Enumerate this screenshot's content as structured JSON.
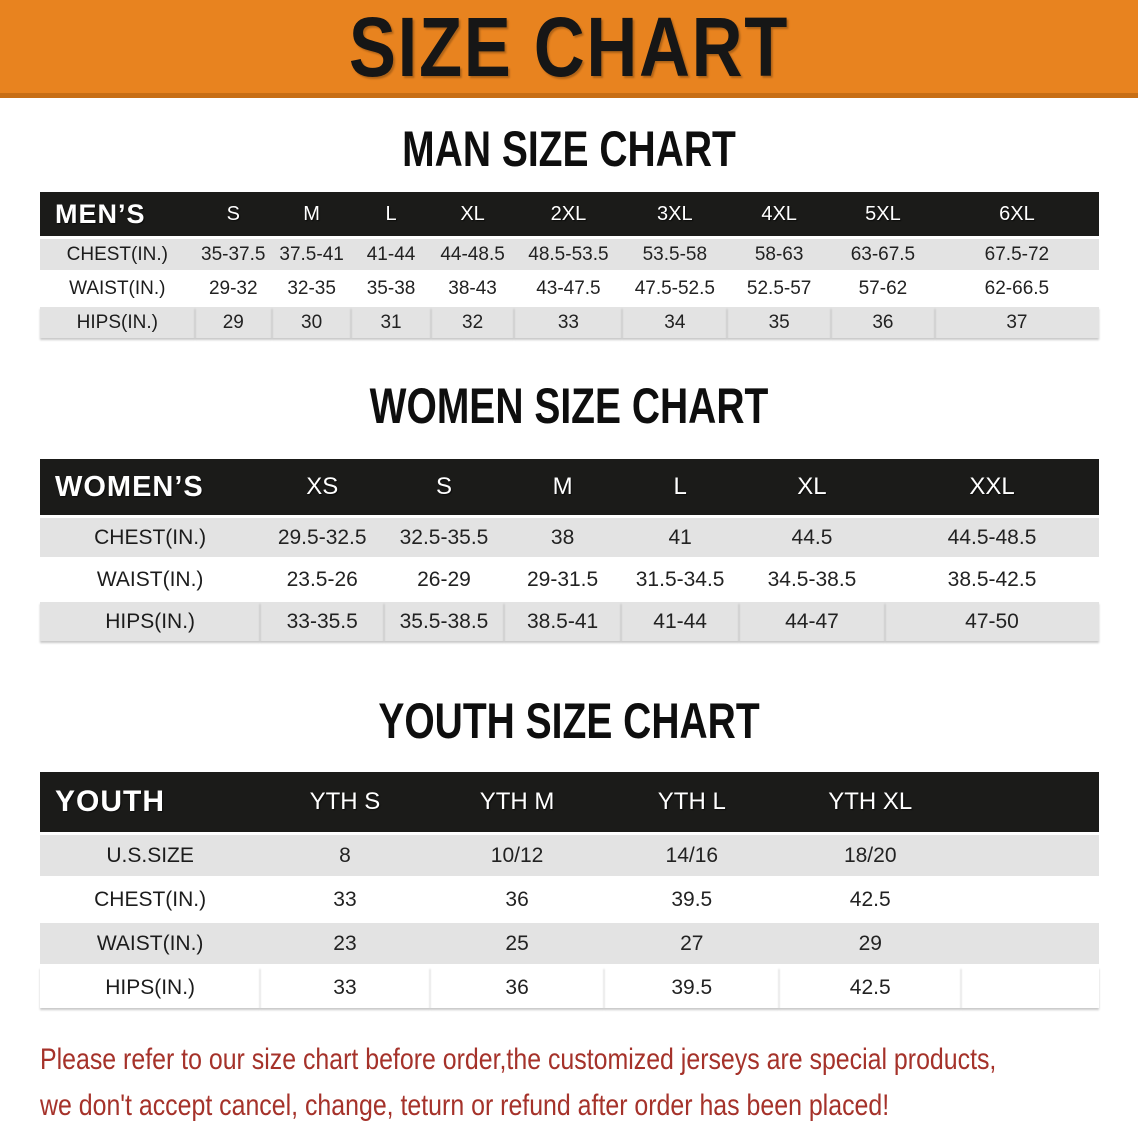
{
  "banner": {
    "title": "SIZE CHART"
  },
  "chart_data": [
    {
      "type": "table",
      "title": "MAN SIZE CHART",
      "header_label": "MEN’S",
      "columns": [
        "S",
        "M",
        "L",
        "XL",
        "2XL",
        "3XL",
        "4XL",
        "5XL",
        "6XL"
      ],
      "rows": [
        {
          "label": "CHEST(IN.)",
          "values": [
            "35-37.5",
            "37.5-41",
            "41-44",
            "44-48.5",
            "48.5-53.5",
            "53.5-58",
            "58-63",
            "63-67.5",
            "67.5-72"
          ]
        },
        {
          "label": "WAIST(IN.)",
          "values": [
            "29-32",
            "32-35",
            "35-38",
            "38-43",
            "43-47.5",
            "47.5-52.5",
            "52.5-57",
            "57-62",
            "62-66.5"
          ]
        },
        {
          "label": "HIPS(IN.)",
          "values": [
            "29",
            "30",
            "31",
            "32",
            "33",
            "34",
            "35",
            "36",
            "37"
          ]
        }
      ]
    },
    {
      "type": "table",
      "title": "WOMEN SIZE CHART",
      "header_label": "WOMEN’S",
      "columns": [
        "XS",
        "S",
        "M",
        "L",
        "XL",
        "XXL"
      ],
      "rows": [
        {
          "label": "CHEST(IN.)",
          "values": [
            "29.5-32.5",
            "32.5-35.5",
            "38",
            "41",
            "44.5",
            "44.5-48.5"
          ]
        },
        {
          "label": "WAIST(IN.)",
          "values": [
            "23.5-26",
            "26-29",
            "29-31.5",
            "31.5-34.5",
            "34.5-38.5",
            "38.5-42.5"
          ]
        },
        {
          "label": "HIPS(IN.)",
          "values": [
            "33-35.5",
            "35.5-38.5",
            "38.5-41",
            "41-44",
            "44-47",
            "47-50"
          ]
        }
      ]
    },
    {
      "type": "table",
      "title": "YOUTH SIZE CHART",
      "header_label": "YOUTH",
      "columns": [
        "YTH S",
        "YTH M",
        "YTH L",
        "YTH XL"
      ],
      "rows": [
        {
          "label": "U.S.SIZE",
          "values": [
            "8",
            "10/12",
            "14/16",
            "18/20"
          ]
        },
        {
          "label": "CHEST(IN.)",
          "values": [
            "33",
            "36",
            "39.5",
            "42.5"
          ]
        },
        {
          "label": "WAIST(IN.)",
          "values": [
            "23",
            "25",
            "27",
            "29"
          ]
        },
        {
          "label": "HIPS(IN.)",
          "values": [
            "33",
            "36",
            "39.5",
            "42.5"
          ]
        }
      ]
    }
  ],
  "footnote": {
    "line1": "Please refer to our size chart before order,the customized jerseys are special products,",
    "line2": "we don't accept cancel, change, teturn or refund after order has been placed!"
  },
  "colors": {
    "banner_bg": "#E8831F",
    "banner_edge": "#C76E15",
    "header_bar_bg": "#1B1B19",
    "row_stripe": "#E3E3E3",
    "banner_title_text": "#161616",
    "footnote_text": "#A5322A"
  }
}
